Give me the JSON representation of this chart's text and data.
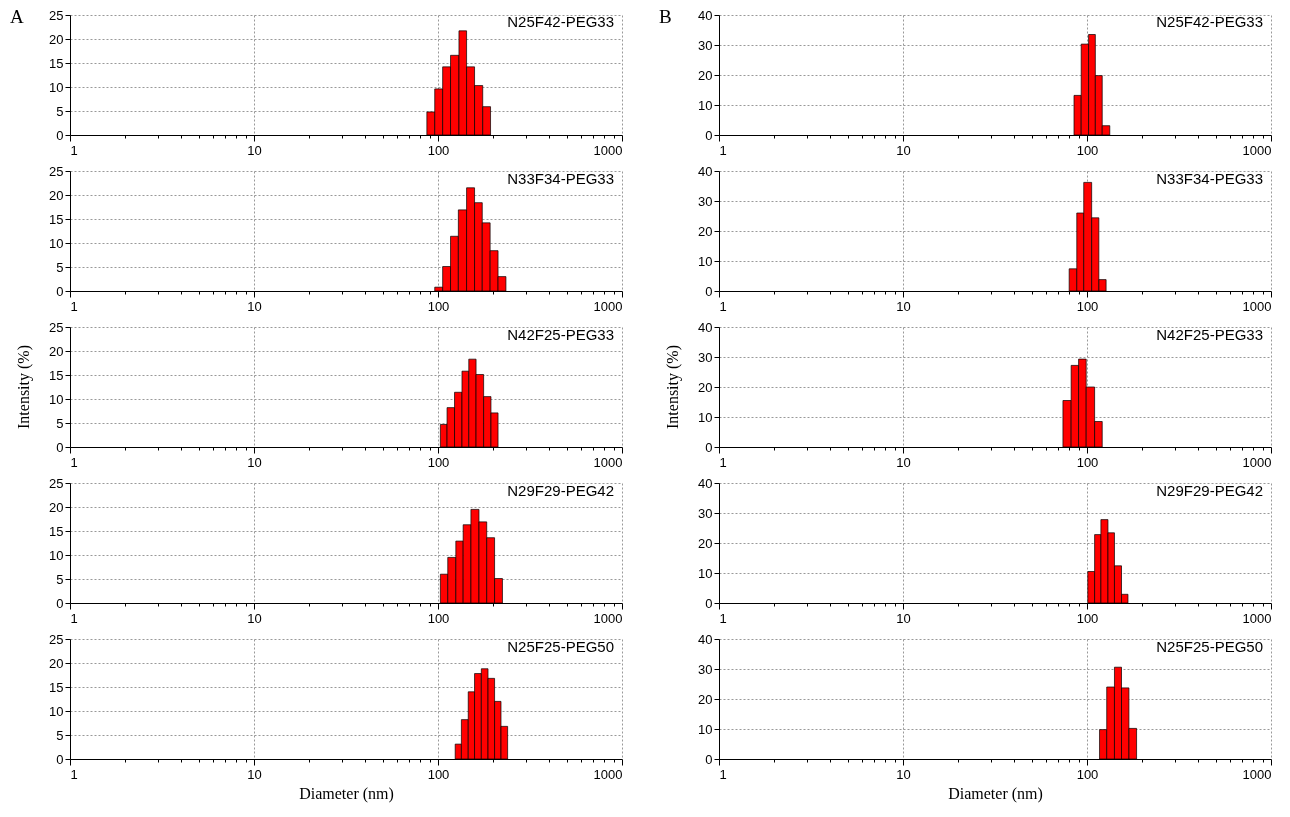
{
  "chart_data": [
    {
      "type": "histogram",
      "title": "N25F42-PEG33",
      "annotations": [
        "A"
      ],
      "bins": [
        87,
        96,
        106,
        117,
        130,
        143,
        158,
        175,
        193
      ],
      "values": [
        4.8,
        9.6,
        14.2,
        16.6,
        21.7,
        14.2,
        10.3,
        5.9
      ],
      "color": "#ff0000",
      "log": "x",
      "xlim": [
        1,
        1000
      ],
      "xticks": [
        1,
        {
          "value": 2,
          "label": null
        },
        {
          "value": 3,
          "label": null
        },
        {
          "value": 4,
          "label": null
        },
        {
          "value": 5,
          "label": null
        },
        {
          "value": 6,
          "label": null
        },
        {
          "value": 7,
          "label": null
        },
        {
          "value": 8,
          "label": null
        },
        {
          "value": 9,
          "label": null
        },
        10,
        {
          "value": 20,
          "label": null
        },
        {
          "value": 30,
          "label": null
        },
        {
          "value": 40,
          "label": null
        },
        {
          "value": 50,
          "label": null
        },
        {
          "value": 60,
          "label": null
        },
        {
          "value": 70,
          "label": null
        },
        {
          "value": 80,
          "label": null
        },
        {
          "value": 90,
          "label": null
        },
        100,
        {
          "value": 200,
          "label": null
        },
        {
          "value": 300,
          "label": null
        },
        {
          "value": 400,
          "label": null
        },
        {
          "value": 500,
          "label": null
        },
        {
          "value": 600,
          "label": null
        },
        {
          "value": 700,
          "label": null
        },
        {
          "value": 800,
          "label": null
        },
        {
          "value": 900,
          "label": null
        },
        1000
      ],
      "ylim": [
        0,
        25
      ],
      "yticks": [
        0,
        5,
        10,
        15,
        20,
        25
      ],
      "grid": true
    },
    {
      "type": "histogram",
      "title": "N33F34-PEG33",
      "bins": [
        96,
        106,
        117,
        129,
        143,
        158,
        174,
        192,
        212,
        234
      ],
      "values": [
        0.8,
        5.1,
        11.4,
        16.9,
        21.5,
        18.4,
        14.2,
        8.4,
        3.0
      ],
      "color": "#ff0000",
      "log": "x",
      "xlim": [
        1,
        1000
      ],
      "xticks": [
        1,
        {
          "value": 2,
          "label": null
        },
        {
          "value": 3,
          "label": null
        },
        {
          "value": 4,
          "label": null
        },
        {
          "value": 5,
          "label": null
        },
        {
          "value": 6,
          "label": null
        },
        {
          "value": 7,
          "label": null
        },
        {
          "value": 8,
          "label": null
        },
        {
          "value": 9,
          "label": null
        },
        10,
        {
          "value": 20,
          "label": null
        },
        {
          "value": 30,
          "label": null
        },
        {
          "value": 40,
          "label": null
        },
        {
          "value": 50,
          "label": null
        },
        {
          "value": 60,
          "label": null
        },
        {
          "value": 70,
          "label": null
        },
        {
          "value": 80,
          "label": null
        },
        {
          "value": 90,
          "label": null
        },
        100,
        {
          "value": 200,
          "label": null
        },
        {
          "value": 300,
          "label": null
        },
        {
          "value": 400,
          "label": null
        },
        {
          "value": 500,
          "label": null
        },
        {
          "value": 600,
          "label": null
        },
        {
          "value": 700,
          "label": null
        },
        {
          "value": 800,
          "label": null
        },
        {
          "value": 900,
          "label": null
        },
        1000
      ],
      "ylim": [
        0,
        25
      ],
      "yticks": [
        0,
        5,
        10,
        15,
        20,
        25
      ],
      "grid": true
    },
    {
      "type": "histogram",
      "title": "N42F25-PEG33",
      "ylabel": "Intensity (%)",
      "bins": [
        103,
        112,
        123,
        135,
        147,
        161,
        177,
        194,
        212
      ],
      "values": [
        4.7,
        8.2,
        11.4,
        15.8,
        18.3,
        15.1,
        10.5,
        7.1
      ],
      "color": "#ff0000",
      "log": "x",
      "xlim": [
        1,
        1000
      ],
      "xticks": [
        1,
        {
          "value": 2,
          "label": null
        },
        {
          "value": 3,
          "label": null
        },
        {
          "value": 4,
          "label": null
        },
        {
          "value": 5,
          "label": null
        },
        {
          "value": 6,
          "label": null
        },
        {
          "value": 7,
          "label": null
        },
        {
          "value": 8,
          "label": null
        },
        {
          "value": 9,
          "label": null
        },
        10,
        {
          "value": 20,
          "label": null
        },
        {
          "value": 30,
          "label": null
        },
        {
          "value": 40,
          "label": null
        },
        {
          "value": 50,
          "label": null
        },
        {
          "value": 60,
          "label": null
        },
        {
          "value": 70,
          "label": null
        },
        {
          "value": 80,
          "label": null
        },
        {
          "value": 90,
          "label": null
        },
        100,
        {
          "value": 200,
          "label": null
        },
        {
          "value": 300,
          "label": null
        },
        {
          "value": 400,
          "label": null
        },
        {
          "value": 500,
          "label": null
        },
        {
          "value": 600,
          "label": null
        },
        {
          "value": 700,
          "label": null
        },
        {
          "value": 800,
          "label": null
        },
        {
          "value": 900,
          "label": null
        },
        1000
      ],
      "ylim": [
        0,
        25
      ],
      "yticks": [
        0,
        5,
        10,
        15,
        20,
        25
      ],
      "grid": true
    },
    {
      "type": "histogram",
      "title": "N29F29-PEG42",
      "bins": [
        103,
        113,
        125,
        137,
        151,
        167,
        184,
        203,
        224
      ],
      "values": [
        6.0,
        9.5,
        12.9,
        16.3,
        19.5,
        16.9,
        13.6,
        5.1
      ],
      "color": "#ff0000",
      "log": "x",
      "xlim": [
        1,
        1000
      ],
      "xticks": [
        1,
        {
          "value": 2,
          "label": null
        },
        {
          "value": 3,
          "label": null
        },
        {
          "value": 4,
          "label": null
        },
        {
          "value": 5,
          "label": null
        },
        {
          "value": 6,
          "label": null
        },
        {
          "value": 7,
          "label": null
        },
        {
          "value": 8,
          "label": null
        },
        {
          "value": 9,
          "label": null
        },
        10,
        {
          "value": 20,
          "label": null
        },
        {
          "value": 30,
          "label": null
        },
        {
          "value": 40,
          "label": null
        },
        {
          "value": 50,
          "label": null
        },
        {
          "value": 60,
          "label": null
        },
        {
          "value": 70,
          "label": null
        },
        {
          "value": 80,
          "label": null
        },
        {
          "value": 90,
          "label": null
        },
        100,
        {
          "value": 200,
          "label": null
        },
        {
          "value": 300,
          "label": null
        },
        {
          "value": 400,
          "label": null
        },
        {
          "value": 500,
          "label": null
        },
        {
          "value": 600,
          "label": null
        },
        {
          "value": 700,
          "label": null
        },
        {
          "value": 800,
          "label": null
        },
        {
          "value": 900,
          "label": null
        },
        1000
      ],
      "ylim": [
        0,
        25
      ],
      "yticks": [
        0,
        5,
        10,
        15,
        20,
        25
      ],
      "grid": true
    },
    {
      "type": "histogram",
      "title": "N25F25-PEG50",
      "xlabel": "Diameter (nm)",
      "bins": [
        124,
        134,
        146,
        158,
        172,
        187,
        203,
        220,
        239
      ],
      "values": [
        3.1,
        8.2,
        14.0,
        17.8,
        18.8,
        16.8,
        12.0,
        6.8
      ],
      "color": "#ff0000",
      "log": "x",
      "xlim": [
        1,
        1000
      ],
      "xticks": [
        1,
        {
          "value": 2,
          "label": null
        },
        {
          "value": 3,
          "label": null
        },
        {
          "value": 4,
          "label": null
        },
        {
          "value": 5,
          "label": null
        },
        {
          "value": 6,
          "label": null
        },
        {
          "value": 7,
          "label": null
        },
        {
          "value": 8,
          "label": null
        },
        {
          "value": 9,
          "label": null
        },
        10,
        {
          "value": 20,
          "label": null
        },
        {
          "value": 30,
          "label": null
        },
        {
          "value": 40,
          "label": null
        },
        {
          "value": 50,
          "label": null
        },
        {
          "value": 60,
          "label": null
        },
        {
          "value": 70,
          "label": null
        },
        {
          "value": 80,
          "label": null
        },
        {
          "value": 90,
          "label": null
        },
        100,
        {
          "value": 200,
          "label": null
        },
        {
          "value": 300,
          "label": null
        },
        {
          "value": 400,
          "label": null
        },
        {
          "value": 500,
          "label": null
        },
        {
          "value": 600,
          "label": null
        },
        {
          "value": 700,
          "label": null
        },
        {
          "value": 800,
          "label": null
        },
        {
          "value": 900,
          "label": null
        },
        1000
      ],
      "ylim": [
        0,
        25
      ],
      "yticks": [
        0,
        5,
        10,
        15,
        20,
        25
      ],
      "grid": true
    },
    {
      "type": "histogram",
      "title": "N25F42-PEG33",
      "annotations": [
        "B"
      ],
      "bins": [
        85,
        93,
        102,
        111,
        121,
        133
      ],
      "values": [
        13.2,
        30.3,
        33.5,
        19.8,
        3.1
      ],
      "color": "#ff0000",
      "log": "x",
      "xlim": [
        1,
        1000
      ],
      "xticks": [
        1,
        {
          "value": 2,
          "label": null
        },
        {
          "value": 3,
          "label": null
        },
        {
          "value": 4,
          "label": null
        },
        {
          "value": 5,
          "label": null
        },
        {
          "value": 6,
          "label": null
        },
        {
          "value": 7,
          "label": null
        },
        {
          "value": 8,
          "label": null
        },
        {
          "value": 9,
          "label": null
        },
        10,
        {
          "value": 20,
          "label": null
        },
        {
          "value": 30,
          "label": null
        },
        {
          "value": 40,
          "label": null
        },
        {
          "value": 50,
          "label": null
        },
        {
          "value": 60,
          "label": null
        },
        {
          "value": 70,
          "label": null
        },
        {
          "value": 80,
          "label": null
        },
        {
          "value": 90,
          "label": null
        },
        100,
        {
          "value": 200,
          "label": null
        },
        {
          "value": 300,
          "label": null
        },
        {
          "value": 400,
          "label": null
        },
        {
          "value": 500,
          "label": null
        },
        {
          "value": 600,
          "label": null
        },
        {
          "value": 700,
          "label": null
        },
        {
          "value": 800,
          "label": null
        },
        {
          "value": 900,
          "label": null
        },
        1000
      ],
      "ylim": [
        0,
        40
      ],
      "yticks": [
        0,
        10,
        20,
        30,
        40
      ],
      "grid": true
    },
    {
      "type": "histogram",
      "title": "N33F34-PEG33",
      "bins": [
        80,
        88,
        96,
        106,
        116,
        127
      ],
      "values": [
        7.4,
        26.0,
        36.2,
        24.4,
        3.8
      ],
      "color": "#ff0000",
      "log": "x",
      "xlim": [
        1,
        1000
      ],
      "xticks": [
        1,
        {
          "value": 2,
          "label": null
        },
        {
          "value": 3,
          "label": null
        },
        {
          "value": 4,
          "label": null
        },
        {
          "value": 5,
          "label": null
        },
        {
          "value": 6,
          "label": null
        },
        {
          "value": 7,
          "label": null
        },
        {
          "value": 8,
          "label": null
        },
        {
          "value": 9,
          "label": null
        },
        10,
        {
          "value": 20,
          "label": null
        },
        {
          "value": 30,
          "label": null
        },
        {
          "value": 40,
          "label": null
        },
        {
          "value": 50,
          "label": null
        },
        {
          "value": 60,
          "label": null
        },
        {
          "value": 70,
          "label": null
        },
        {
          "value": 80,
          "label": null
        },
        {
          "value": 90,
          "label": null
        },
        100,
        {
          "value": 200,
          "label": null
        },
        {
          "value": 300,
          "label": null
        },
        {
          "value": 400,
          "label": null
        },
        {
          "value": 500,
          "label": null
        },
        {
          "value": 600,
          "label": null
        },
        {
          "value": 700,
          "label": null
        },
        {
          "value": 800,
          "label": null
        },
        {
          "value": 900,
          "label": null
        },
        1000
      ],
      "ylim": [
        0,
        40
      ],
      "yticks": [
        0,
        10,
        20,
        30,
        40
      ],
      "grid": true
    },
    {
      "type": "histogram",
      "title": "N42F25-PEG33",
      "ylabel": "Intensity (%)",
      "bins": [
        74,
        82,
        90,
        99,
        110,
        121
      ],
      "values": [
        15.5,
        27.2,
        29.3,
        20.0,
        8.5
      ],
      "color": "#ff0000",
      "log": "x",
      "xlim": [
        1,
        1000
      ],
      "xticks": [
        1,
        {
          "value": 2,
          "label": null
        },
        {
          "value": 3,
          "label": null
        },
        {
          "value": 4,
          "label": null
        },
        {
          "value": 5,
          "label": null
        },
        {
          "value": 6,
          "label": null
        },
        {
          "value": 7,
          "label": null
        },
        {
          "value": 8,
          "label": null
        },
        {
          "value": 9,
          "label": null
        },
        10,
        {
          "value": 20,
          "label": null
        },
        {
          "value": 30,
          "label": null
        },
        {
          "value": 40,
          "label": null
        },
        {
          "value": 50,
          "label": null
        },
        {
          "value": 60,
          "label": null
        },
        {
          "value": 70,
          "label": null
        },
        {
          "value": 80,
          "label": null
        },
        {
          "value": 90,
          "label": null
        },
        100,
        {
          "value": 200,
          "label": null
        },
        {
          "value": 300,
          "label": null
        },
        {
          "value": 400,
          "label": null
        },
        {
          "value": 500,
          "label": null
        },
        {
          "value": 600,
          "label": null
        },
        {
          "value": 700,
          "label": null
        },
        {
          "value": 800,
          "label": null
        },
        {
          "value": 900,
          "label": null
        },
        1000
      ],
      "ylim": [
        0,
        40
      ],
      "yticks": [
        0,
        10,
        20,
        30,
        40
      ],
      "grid": true
    },
    {
      "type": "histogram",
      "title": "N29F29-PEG42",
      "bins": [
        101,
        110,
        119,
        130,
        141,
        154,
        167
      ],
      "values": [
        10.5,
        22.8,
        27.8,
        23.4,
        12.4,
        2.9
      ],
      "color": "#ff0000",
      "log": "x",
      "xlim": [
        1,
        1000
      ],
      "xticks": [
        1,
        {
          "value": 2,
          "label": null
        },
        {
          "value": 3,
          "label": null
        },
        {
          "value": 4,
          "label": null
        },
        {
          "value": 5,
          "label": null
        },
        {
          "value": 6,
          "label": null
        },
        {
          "value": 7,
          "label": null
        },
        {
          "value": 8,
          "label": null
        },
        {
          "value": 9,
          "label": null
        },
        10,
        {
          "value": 20,
          "label": null
        },
        {
          "value": 30,
          "label": null
        },
        {
          "value": 40,
          "label": null
        },
        {
          "value": 50,
          "label": null
        },
        {
          "value": 60,
          "label": null
        },
        {
          "value": 70,
          "label": null
        },
        {
          "value": 80,
          "label": null
        },
        {
          "value": 90,
          "label": null
        },
        100,
        {
          "value": 200,
          "label": null
        },
        {
          "value": 300,
          "label": null
        },
        {
          "value": 400,
          "label": null
        },
        {
          "value": 500,
          "label": null
        },
        {
          "value": 600,
          "label": null
        },
        {
          "value": 700,
          "label": null
        },
        {
          "value": 800,
          "label": null
        },
        {
          "value": 900,
          "label": null
        },
        1000
      ],
      "ylim": [
        0,
        40
      ],
      "yticks": [
        0,
        10,
        20,
        30,
        40
      ],
      "grid": true
    },
    {
      "type": "histogram",
      "title": "N25F25-PEG50",
      "xlabel": "Diameter (nm)",
      "bins": [
        117,
        128,
        141,
        154,
        169,
        186
      ],
      "values": [
        9.8,
        24.0,
        30.6,
        23.7,
        10.2
      ],
      "color": "#ff0000",
      "log": "x",
      "xlim": [
        1,
        1000
      ],
      "xticks": [
        1,
        {
          "value": 2,
          "label": null
        },
        {
          "value": 3,
          "label": null
        },
        {
          "value": 4,
          "label": null
        },
        {
          "value": 5,
          "label": null
        },
        {
          "value": 6,
          "label": null
        },
        {
          "value": 7,
          "label": null
        },
        {
          "value": 8,
          "label": null
        },
        {
          "value": 9,
          "label": null
        },
        10,
        {
          "value": 20,
          "label": null
        },
        {
          "value": 30,
          "label": null
        },
        {
          "value": 40,
          "label": null
        },
        {
          "value": 50,
          "label": null
        },
        {
          "value": 60,
          "label": null
        },
        {
          "value": 70,
          "label": null
        },
        {
          "value": 80,
          "label": null
        },
        {
          "value": 90,
          "label": null
        },
        100,
        {
          "value": 200,
          "label": null
        },
        {
          "value": 300,
          "label": null
        },
        {
          "value": 400,
          "label": null
        },
        {
          "value": 500,
          "label": null
        },
        {
          "value": 600,
          "label": null
        },
        {
          "value": 700,
          "label": null
        },
        {
          "value": 800,
          "label": null
        },
        {
          "value": 900,
          "label": null
        },
        1000
      ],
      "ylim": [
        0,
        40
      ],
      "yticks": [
        0,
        10,
        20,
        30,
        40
      ],
      "grid": true
    }
  ]
}
